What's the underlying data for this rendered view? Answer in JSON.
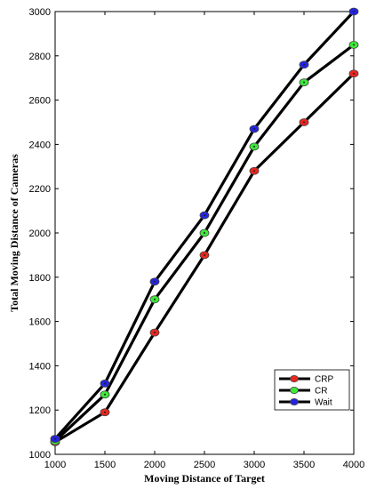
{
  "chart_data": {
    "type": "line",
    "title": "",
    "xlabel": "Moving Distance of Target",
    "ylabel": "Total Moving Distance of Cameras",
    "xlim": [
      1000,
      4000
    ],
    "ylim": [
      1000,
      3000
    ],
    "xticks": [
      1000,
      1500,
      2000,
      2500,
      3000,
      3500,
      4000
    ],
    "yticks": [
      1000,
      1200,
      1400,
      1600,
      1800,
      2000,
      2200,
      2400,
      2600,
      2800,
      3000
    ],
    "grid": false,
    "legend_position": "bottom-right",
    "x": [
      1000,
      1500,
      2000,
      2500,
      3000,
      3500,
      4000
    ],
    "series": [
      {
        "name": "CRP",
        "color": "#e8261f",
        "values": [
          1055,
          1190,
          1550,
          1900,
          2280,
          2500,
          2720
        ]
      },
      {
        "name": "CR",
        "color": "#3ee83a",
        "values": [
          1060,
          1270,
          1700,
          2000,
          2390,
          2680,
          2850
        ]
      },
      {
        "name": "Wait",
        "color": "#2424e0",
        "values": [
          1070,
          1320,
          1780,
          2080,
          2470,
          2760,
          3000
        ]
      }
    ]
  }
}
